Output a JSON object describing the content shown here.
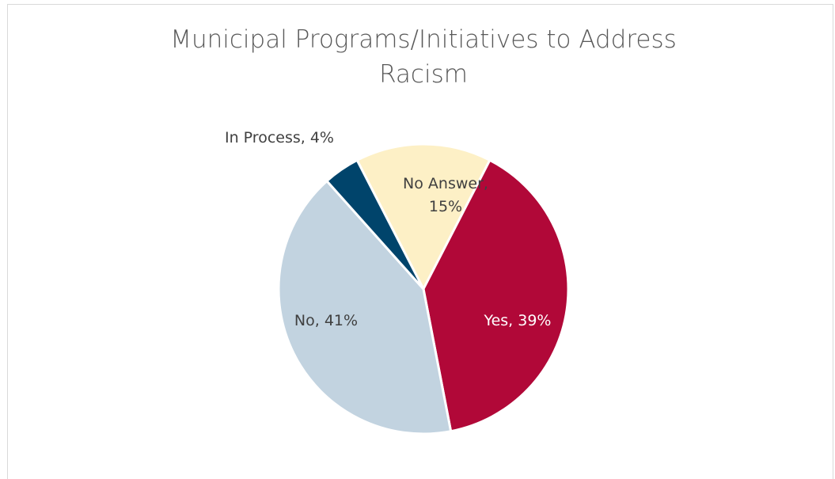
{
  "chart_data": {
    "type": "pie",
    "title_line1": "Municipal Programs/Initiatives to Address",
    "title_line2": "Racism",
    "slices": [
      {
        "label": "No Answer,",
        "label2": "15%",
        "value": 15,
        "color": "#fdf0c6",
        "text_color": "#404040"
      },
      {
        "label": "Yes, 39%",
        "value": 39,
        "color": "#b10838",
        "text_color": "#ffffff"
      },
      {
        "label": "No, 41%",
        "value": 41,
        "color": "#c2d3e0",
        "text_color": "#404040"
      },
      {
        "label": "In Process, 4%",
        "value": 4,
        "color": "#00446b",
        "text_color": "#404040"
      }
    ]
  }
}
